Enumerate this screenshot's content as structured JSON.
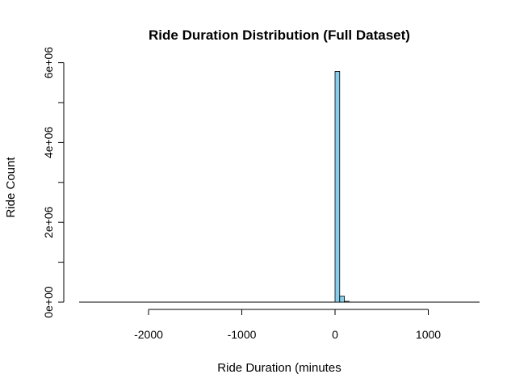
{
  "chart_data": {
    "type": "bar",
    "title": "Ride Duration Distribution (Full Dataset)",
    "xlabel": "Ride Duration (minutes",
    "ylabel": "Ride Count",
    "xlim": [
      -2700,
      1550
    ],
    "ylim": [
      0,
      6000000
    ],
    "x_ticks": [
      {
        "value": -2000,
        "label": "-2000"
      },
      {
        "value": -1000,
        "label": "-1000"
      },
      {
        "value": 0,
        "label": "0"
      },
      {
        "value": 1000,
        "label": "1000"
      }
    ],
    "y_ticks": [
      {
        "value": 0,
        "label": "0e+00"
      },
      {
        "value": 1000000,
        "label": ""
      },
      {
        "value": 2000000,
        "label": "2e+06"
      },
      {
        "value": 3000000,
        "label": ""
      },
      {
        "value": 4000000,
        "label": "4e+06"
      },
      {
        "value": 5000000,
        "label": ""
      },
      {
        "value": 6000000,
        "label": "6e+06"
      }
    ],
    "bins": [
      {
        "start": 0,
        "end": 50,
        "count": 5780000
      },
      {
        "start": 50,
        "end": 100,
        "count": 150000
      },
      {
        "start": 100,
        "end": 150,
        "count": 20000
      }
    ],
    "bar_color": "#87ceeb",
    "grid": false
  }
}
